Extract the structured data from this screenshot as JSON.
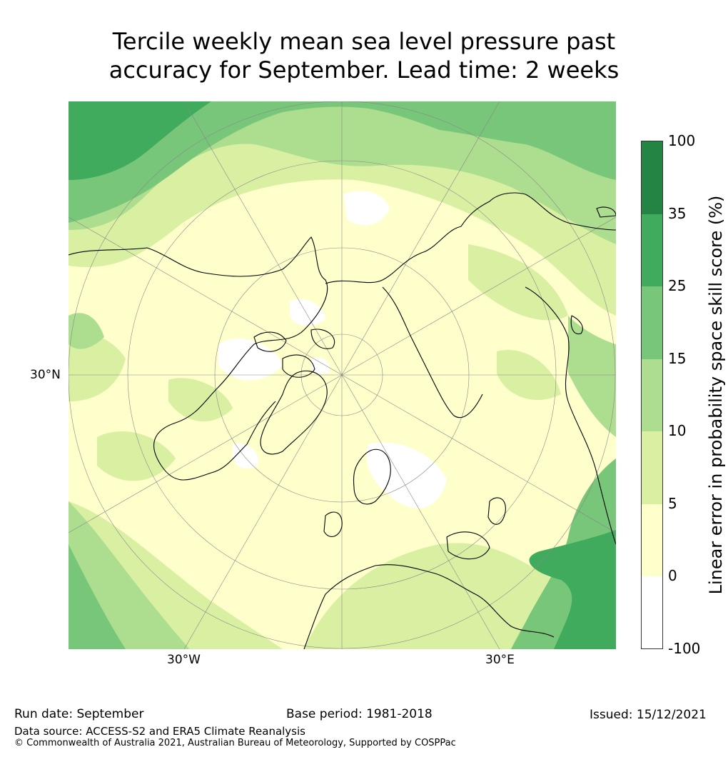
{
  "title_line1": "Tercile weekly mean sea level pressure past",
  "title_line2": "accuracy for September. Lead time: 2 weeks",
  "map": {
    "projection": "north-polar-stereographic",
    "lat_label": "30°N",
    "lon_label_left": "30°W",
    "lon_label_right": "30°E",
    "ocean_fill": "#ffffcc",
    "coastline_color": "#000000"
  },
  "colorbar": {
    "title": "Linear error in probability space skill score (%)",
    "levels": [
      "100",
      "35",
      "25",
      "15",
      "10",
      "5",
      "0",
      "-100"
    ],
    "colors": [
      "#238443",
      "#41ab5d",
      "#78c679",
      "#addd8e",
      "#d9f0a3",
      "#ffffcc",
      "#ffffff"
    ]
  },
  "footer": {
    "run_date": "Run date: September",
    "base_period": "Base period: 1981-2018",
    "issued": "Issued: 15/12/2021",
    "data_source": "Data source: ACCESS-S2 and ERA5 Climate Reanalysis",
    "copyright": "© Commonwealth of Australia 2021, Australian Bureau of Meteorology, Supported by COSPPac"
  }
}
